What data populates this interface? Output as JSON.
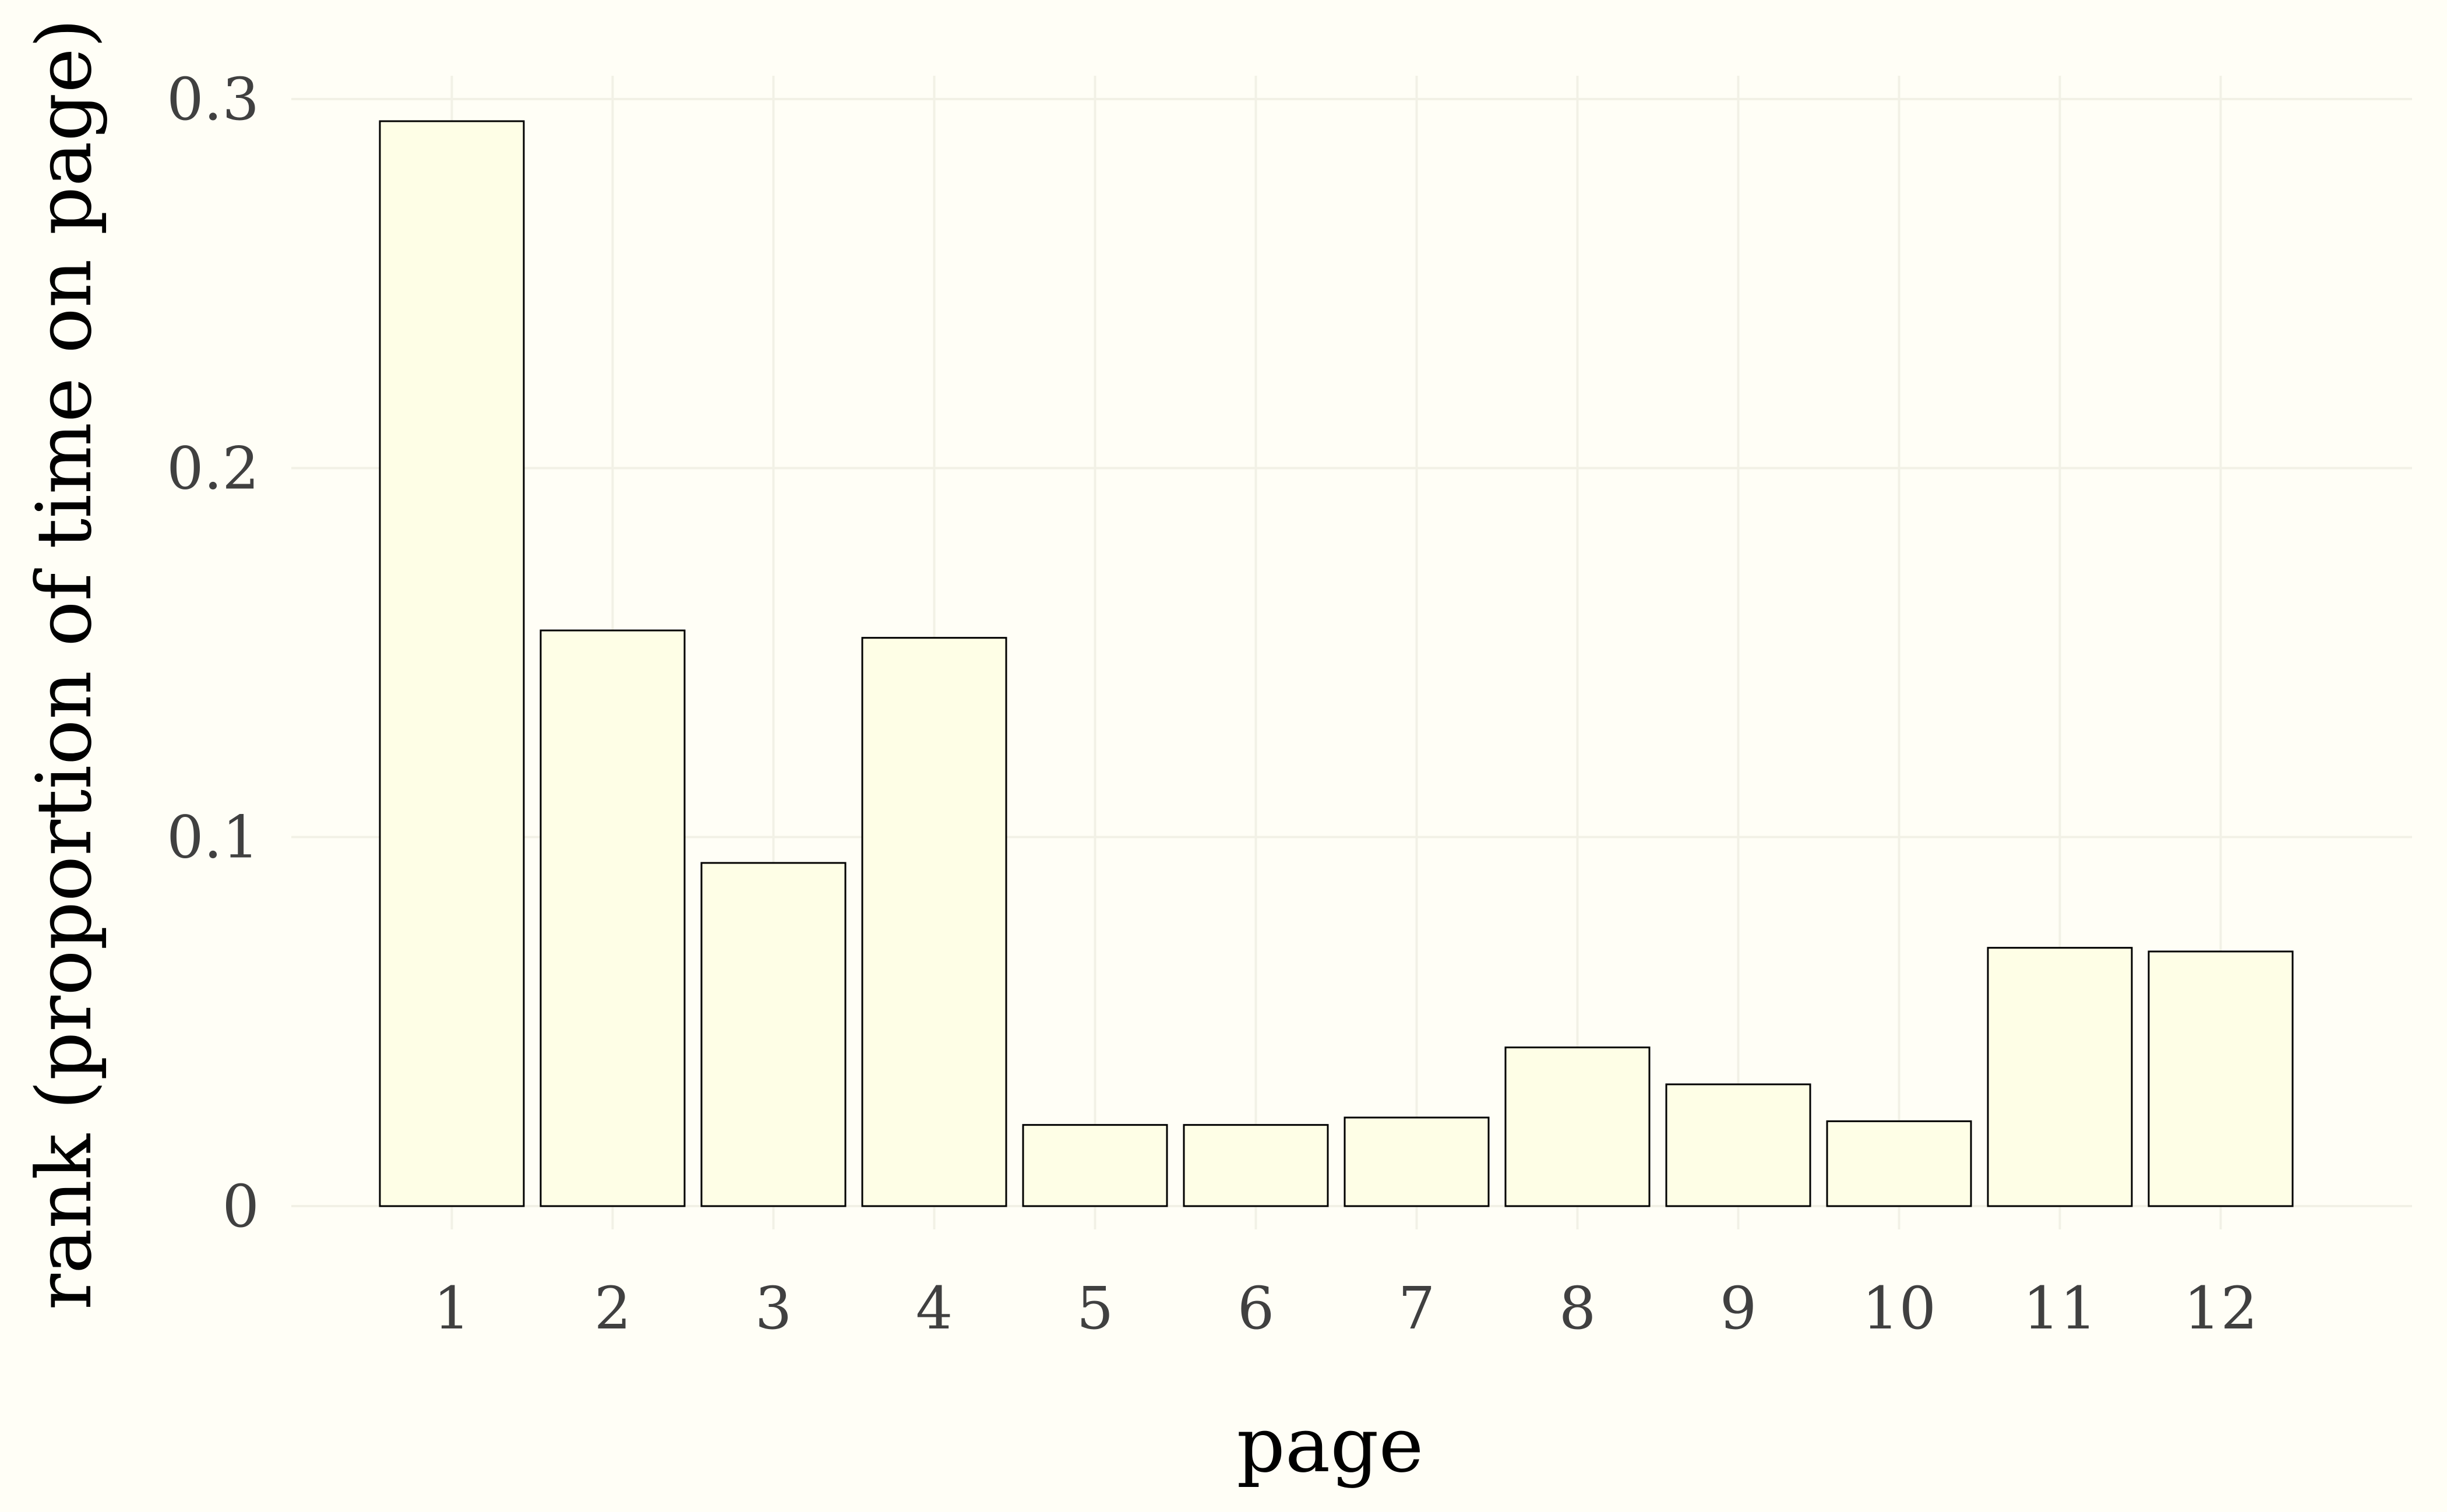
{
  "chart_data": {
    "type": "bar",
    "title": "",
    "xlabel": "page",
    "ylabel": "rank (proportion of time on page)",
    "categories": [
      "1",
      "2",
      "3",
      "4",
      "5",
      "6",
      "7",
      "8",
      "9",
      "10",
      "11",
      "12"
    ],
    "values": [
      0.294,
      0.156,
      0.093,
      0.154,
      0.022,
      0.022,
      0.024,
      0.043,
      0.033,
      0.023,
      0.07,
      0.069
    ],
    "ylim": [
      0,
      0.3
    ],
    "yticks": [
      0,
      0.1,
      0.2,
      0.3
    ],
    "ytick_labels": [
      "0",
      "0.1",
      "0.2",
      "0.3"
    ],
    "grid": true,
    "legend": "none"
  },
  "colors": {
    "background": "#fffef6",
    "bar_fill": "#fefee6",
    "bar_stroke": "#000000",
    "grid": "#f2f1e6",
    "tick_text": "#404040",
    "title_text": "#000000"
  }
}
